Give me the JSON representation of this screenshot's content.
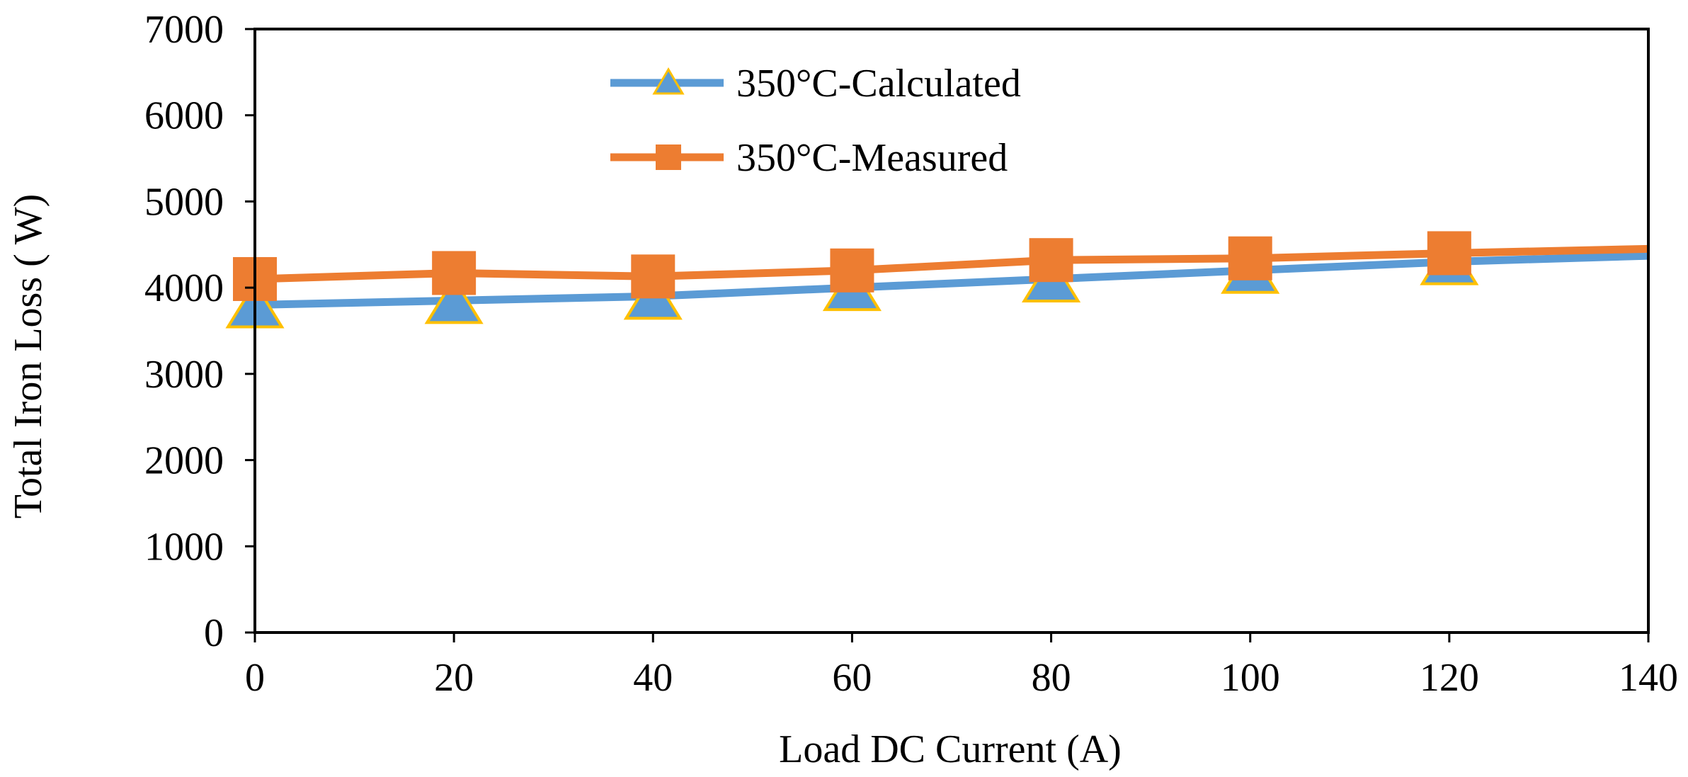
{
  "chart_data": {
    "type": "line",
    "title": "",
    "xlabel": "Load DC Current (A)",
    "ylabel": "Total Iron Loss ( W)",
    "xlim": [
      0,
      140
    ],
    "ylim": [
      0,
      7000
    ],
    "xticks": [
      0,
      20,
      40,
      60,
      80,
      100,
      120,
      140
    ],
    "yticks": [
      0,
      1000,
      2000,
      3000,
      4000,
      5000,
      6000,
      7000
    ],
    "grid": false,
    "legend_position": "top-center",
    "series": [
      {
        "name": "350°C-Calculated",
        "color": "#5B9BD5",
        "marker": "triangle",
        "marker_edge_color": "#FFC000",
        "line_x_end": 140,
        "line_y_end": 4370,
        "x": [
          0,
          20,
          40,
          60,
          80,
          100,
          120
        ],
        "y": [
          3800,
          3850,
          3900,
          4000,
          4100,
          4200,
          4300
        ]
      },
      {
        "name": "350°C-Measured",
        "color": "#ED7D31",
        "marker": "square",
        "line_x_end": 140,
        "line_y_end": 4450,
        "x": [
          0,
          20,
          40,
          60,
          80,
          100,
          120
        ],
        "y": [
          4100,
          4170,
          4130,
          4200,
          4320,
          4340,
          4400
        ]
      }
    ]
  }
}
